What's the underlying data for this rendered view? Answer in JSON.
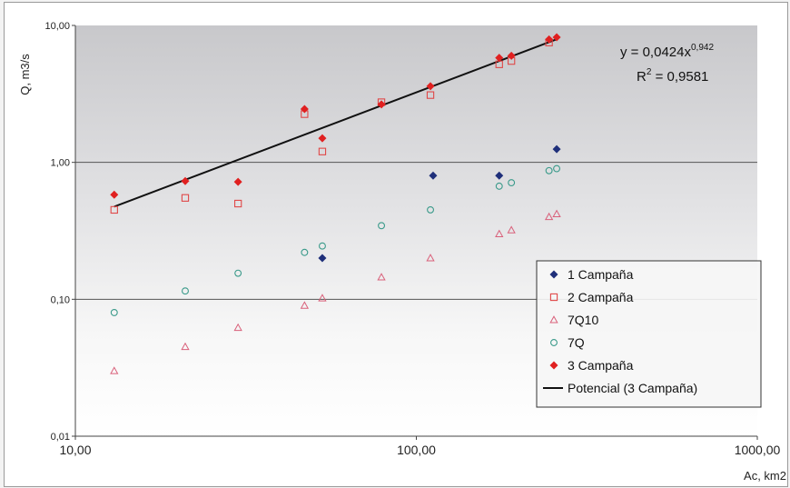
{
  "chart_data": {
    "type": "scatter",
    "title": "",
    "xlabel": "Ac, km2",
    "ylabel": "Q, m3/s",
    "xscale": "log",
    "yscale": "log",
    "xlim": [
      10,
      1000
    ],
    "ylim": [
      0.01,
      10
    ],
    "xticks": [
      "10,00",
      "100,00",
      "1000,00"
    ],
    "yticks": [
      "0,01",
      "0,10",
      "1,00",
      "10,00"
    ],
    "grid": "horizontal major lines",
    "legend_position": "bottom-right",
    "series": [
      {
        "name": "1 Campaña",
        "marker": "diamond-filled",
        "color": "#1f2f7a",
        "x": [
          53,
          112,
          175,
          258
        ],
        "y": [
          0.2,
          0.8,
          0.8,
          1.25
        ]
      },
      {
        "name": "2 Campaña",
        "marker": "square-open",
        "color": "#e04848",
        "x": [
          13,
          21,
          30,
          47,
          53,
          79,
          110,
          175,
          190,
          245
        ],
        "y": [
          0.45,
          0.55,
          0.5,
          2.25,
          1.2,
          2.75,
          3.1,
          5.2,
          5.5,
          7.5
        ]
      },
      {
        "name": "7Q10",
        "marker": "triangle-open",
        "color": "#d9607a",
        "x": [
          13,
          21,
          30,
          47,
          53,
          79,
          110,
          175,
          190,
          245,
          258
        ],
        "y": [
          0.03,
          0.045,
          0.062,
          0.09,
          0.102,
          0.145,
          0.2,
          0.3,
          0.32,
          0.4,
          0.42
        ]
      },
      {
        "name": "7Q",
        "marker": "circle-open",
        "color": "#3a9a8a",
        "x": [
          13,
          21,
          30,
          47,
          53,
          79,
          110,
          175,
          190,
          245,
          258
        ],
        "y": [
          0.08,
          0.115,
          0.155,
          0.22,
          0.245,
          0.345,
          0.45,
          0.67,
          0.71,
          0.87,
          0.9
        ]
      },
      {
        "name": "3 Campaña",
        "marker": "diamond-filled",
        "color": "#e02020",
        "x": [
          13,
          21,
          30,
          47,
          53,
          79,
          110,
          175,
          190,
          245,
          258
        ],
        "y": [
          0.58,
          0.73,
          0.72,
          2.45,
          1.5,
          2.65,
          3.6,
          5.8,
          6.0,
          7.9,
          8.2
        ]
      }
    ],
    "trendline": {
      "name": "Potencial (3 Campaña)",
      "type": "power",
      "color": "#111111",
      "a": 0.0424,
      "b": 0.942,
      "x_range": [
        13,
        258
      ],
      "equation_prefix": "y = 0,0424x",
      "equation_exponent": "0,942",
      "r2_prefix": "R",
      "r2_sup": "2",
      "r2_value": " = 0,9581"
    }
  },
  "colors": {
    "plot_bg_top": "#c9c9cc",
    "plot_bg_bottom": "#ffffff",
    "gridline": "#555555",
    "frame": "#9a9a9a"
  }
}
